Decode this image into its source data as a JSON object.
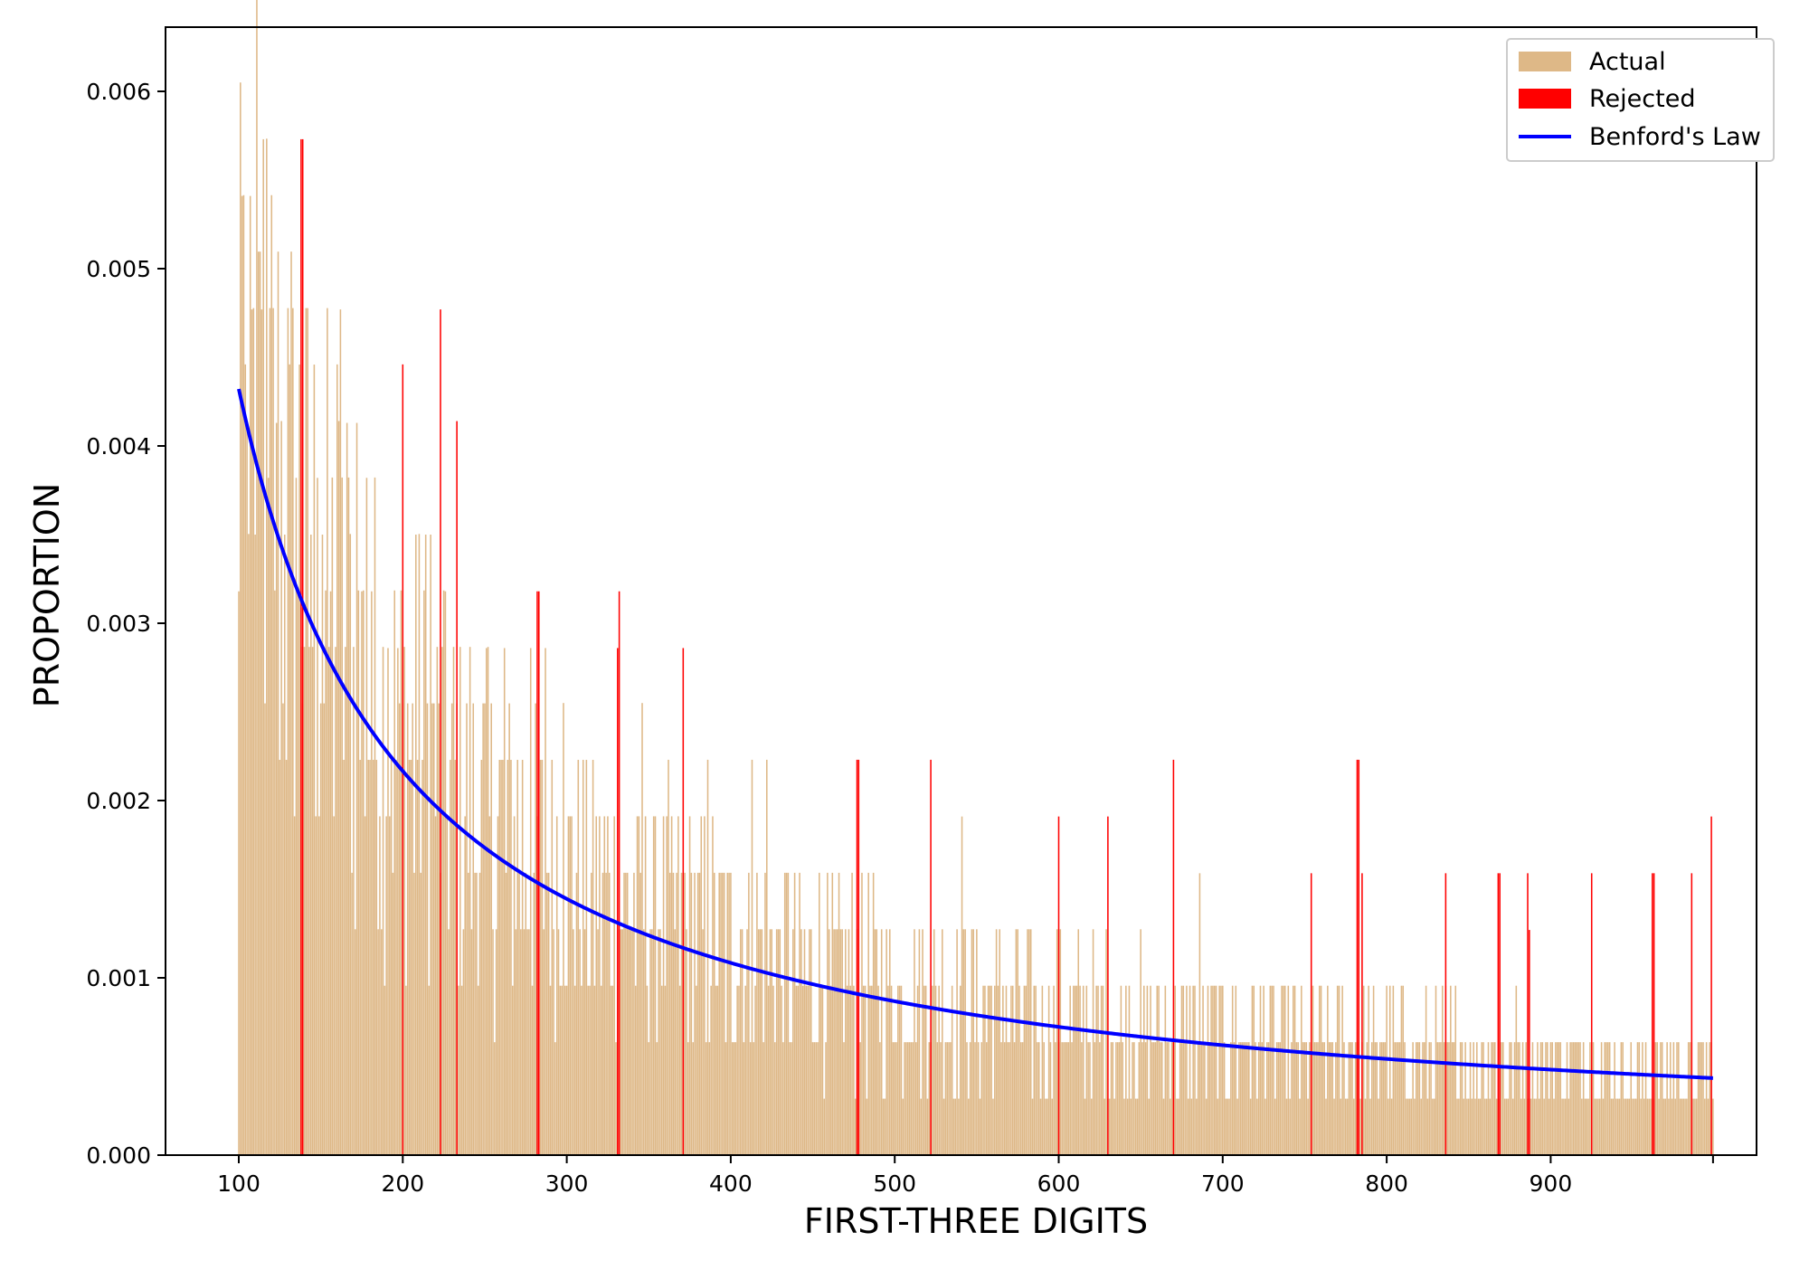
{
  "chart_data": {
    "type": "bar",
    "xlabel": "FIRST-THREE DIGITS",
    "ylabel": "PROPORTION",
    "xlim": [
      55,
      1025
    ],
    "ylim": [
      0,
      0.00635
    ],
    "grid": false,
    "legend_position": "top-right",
    "x_ticks": [
      "100",
      "200",
      "300",
      "400",
      "500",
      "600",
      "700",
      "800",
      "900"
    ],
    "y_ticks": [
      "0.000",
      "0.001",
      "0.002",
      "0.003",
      "0.004",
      "0.005",
      "0.006"
    ],
    "colors": {
      "actual": "#deb887",
      "rejected": "#ff0000",
      "benford": "#0000ff"
    },
    "legend": {
      "actual": "Actual",
      "rejected": "Rejected",
      "benford": "Benford's Law"
    },
    "series": [
      {
        "name": "Actual",
        "kind": "bar",
        "x_range": [
          100,
          999
        ],
        "note_values_sampled": true,
        "highlights": [
          {
            "x": 100,
            "y": 0.00318
          },
          {
            "x": 101,
            "y": 0.00605
          },
          {
            "x": 102,
            "y": 0.00541
          },
          {
            "x": 104,
            "y": 0.00446
          },
          {
            "x": 105,
            "y": 0.00413
          },
          {
            "x": 107,
            "y": 0.00541
          },
          {
            "x": 108,
            "y": 0.00477
          },
          {
            "x": 110,
            "y": 0.0035
          },
          {
            "x": 114,
            "y": 0.00477
          },
          {
            "x": 115,
            "y": 0.00573
          },
          {
            "x": 118,
            "y": 0.00382
          },
          {
            "x": 123,
            "y": 0.00413
          },
          {
            "x": 128,
            "y": 0.0035
          },
          {
            "x": 131,
            "y": 0.00446
          },
          {
            "x": 135,
            "y": 0.00382
          },
          {
            "x": 144,
            "y": 0.0035
          },
          {
            "x": 148,
            "y": 0.00382
          },
          {
            "x": 151,
            "y": 0.0035
          },
          {
            "x": 156,
            "y": 0.00318
          },
          {
            "x": 160,
            "y": 0.00446
          },
          {
            "x": 162,
            "y": 0.00477
          },
          {
            "x": 166,
            "y": 0.00413
          },
          {
            "x": 172,
            "y": 0.00413
          },
          {
            "x": 175,
            "y": 0.00318
          },
          {
            "x": 178,
            "y": 0.00382
          },
          {
            "x": 181,
            "y": 0.00318
          },
          {
            "x": 191,
            "y": 0.00286
          },
          {
            "x": 197,
            "y": 0.00286
          },
          {
            "x": 208,
            "y": 0.0035
          },
          {
            "x": 214,
            "y": 0.0035
          },
          {
            "x": 217,
            "y": 0.0035
          },
          {
            "x": 226,
            "y": 0.00318
          },
          {
            "x": 251,
            "y": 0.00286
          },
          {
            "x": 262,
            "y": 0.00286
          },
          {
            "x": 278,
            "y": 0.00286
          },
          {
            "x": 287,
            "y": 0.00286
          },
          {
            "x": 298,
            "y": 0.00255
          },
          {
            "x": 346,
            "y": 0.00255
          },
          {
            "x": 362,
            "y": 0.00223
          },
          {
            "x": 386,
            "y": 0.00223
          },
          {
            "x": 413,
            "y": 0.00223
          },
          {
            "x": 422,
            "y": 0.00223
          },
          {
            "x": 541,
            "y": 0.00191
          },
          {
            "x": 686,
            "y": 0.00159
          }
        ]
      },
      {
        "name": "Rejected",
        "kind": "bar",
        "values": [
          {
            "x": 138,
            "y": 0.00573
          },
          {
            "x": 139,
            "y": 0.00573
          },
          {
            "x": 200,
            "y": 0.00446
          },
          {
            "x": 223,
            "y": 0.00477
          },
          {
            "x": 233,
            "y": 0.00414
          },
          {
            "x": 282,
            "y": 0.00318
          },
          {
            "x": 283,
            "y": 0.00318
          },
          {
            "x": 331,
            "y": 0.00286
          },
          {
            "x": 332,
            "y": 0.00318
          },
          {
            "x": 371,
            "y": 0.00286
          },
          {
            "x": 477,
            "y": 0.00223
          },
          {
            "x": 478,
            "y": 0.00223
          },
          {
            "x": 522,
            "y": 0.00223
          },
          {
            "x": 600,
            "y": 0.00191
          },
          {
            "x": 630,
            "y": 0.00191
          },
          {
            "x": 670,
            "y": 0.00223
          },
          {
            "x": 754,
            "y": 0.00159
          },
          {
            "x": 782,
            "y": 0.00223
          },
          {
            "x": 783,
            "y": 0.00223
          },
          {
            "x": 785,
            "y": 0.00159
          },
          {
            "x": 836,
            "y": 0.00159
          },
          {
            "x": 868,
            "y": 0.00159
          },
          {
            "x": 869,
            "y": 0.00159
          },
          {
            "x": 886,
            "y": 0.00159
          },
          {
            "x": 887,
            "y": 0.00127
          },
          {
            "x": 925,
            "y": 0.00159
          },
          {
            "x": 962,
            "y": 0.00159
          },
          {
            "x": 963,
            "y": 0.00159
          },
          {
            "x": 986,
            "y": 0.00159
          },
          {
            "x": 998,
            "y": 0.00191
          }
        ]
      },
      {
        "name": "Benford's Law",
        "kind": "line",
        "x_range": [
          100,
          999
        ],
        "formula": "log10(1 + 1/x)",
        "samples": [
          {
            "x": 100,
            "y": 0.00432
          },
          {
            "x": 150,
            "y": 0.00289
          },
          {
            "x": 200,
            "y": 0.00217
          },
          {
            "x": 300,
            "y": 0.00145
          },
          {
            "x": 400,
            "y": 0.00108
          },
          {
            "x": 500,
            "y": 0.00087
          },
          {
            "x": 600,
            "y": 0.00072
          },
          {
            "x": 700,
            "y": 0.00062
          },
          {
            "x": 800,
            "y": 0.00054
          },
          {
            "x": 900,
            "y": 0.00048
          },
          {
            "x": 999,
            "y": 0.00043
          }
        ]
      }
    ]
  }
}
